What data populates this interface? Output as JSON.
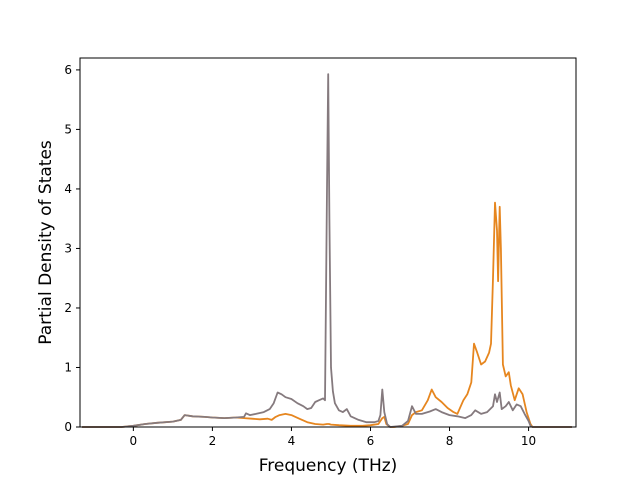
{
  "chart_data": {
    "type": "line",
    "title": "",
    "xlabel": "Frequency (THz)",
    "ylabel": "Partial Density of States",
    "xlim": [
      -1.35,
      11.2
    ],
    "ylim": [
      0,
      6.2
    ],
    "xticks": [
      0,
      2,
      4,
      6,
      8,
      10
    ],
    "yticks": [
      0,
      1,
      2,
      3,
      4,
      5,
      6
    ],
    "grid": false,
    "legend": "none",
    "series": [
      {
        "color": "#e6861f",
        "points": [
          [
            -1.3,
            0
          ],
          [
            -0.3,
            0
          ],
          [
            0,
            0.02
          ],
          [
            0.3,
            0.05
          ],
          [
            0.6,
            0.07
          ],
          [
            1.0,
            0.09
          ],
          [
            1.2,
            0.12
          ],
          [
            1.3,
            0.2
          ],
          [
            1.5,
            0.18
          ],
          [
            1.8,
            0.17
          ],
          [
            2.0,
            0.16
          ],
          [
            2.3,
            0.15
          ],
          [
            2.6,
            0.16
          ],
          [
            2.8,
            0.15
          ],
          [
            3.0,
            0.14
          ],
          [
            3.2,
            0.13
          ],
          [
            3.4,
            0.14
          ],
          [
            3.5,
            0.12
          ],
          [
            3.6,
            0.17
          ],
          [
            3.7,
            0.2
          ],
          [
            3.85,
            0.22
          ],
          [
            4.0,
            0.2
          ],
          [
            4.2,
            0.14
          ],
          [
            4.4,
            0.08
          ],
          [
            4.6,
            0.05
          ],
          [
            4.8,
            0.04
          ],
          [
            4.9,
            0.05
          ],
          [
            4.95,
            0.05
          ],
          [
            5.0,
            0.04
          ],
          [
            5.2,
            0.03
          ],
          [
            5.5,
            0.02
          ],
          [
            5.8,
            0.02
          ],
          [
            6.0,
            0.03
          ],
          [
            6.2,
            0.05
          ],
          [
            6.3,
            0.15
          ],
          [
            6.35,
            0.17
          ],
          [
            6.4,
            0.05
          ],
          [
            6.5,
            0
          ],
          [
            6.6,
            0
          ],
          [
            6.8,
            0.02
          ],
          [
            6.95,
            0.05
          ],
          [
            7.05,
            0.2
          ],
          [
            7.15,
            0.25
          ],
          [
            7.3,
            0.28
          ],
          [
            7.45,
            0.45
          ],
          [
            7.55,
            0.63
          ],
          [
            7.65,
            0.5
          ],
          [
            7.8,
            0.42
          ],
          [
            7.95,
            0.32
          ],
          [
            8.1,
            0.25
          ],
          [
            8.2,
            0.22
          ],
          [
            8.35,
            0.45
          ],
          [
            8.45,
            0.55
          ],
          [
            8.55,
            0.75
          ],
          [
            8.62,
            1.4
          ],
          [
            8.7,
            1.25
          ],
          [
            8.8,
            1.05
          ],
          [
            8.9,
            1.1
          ],
          [
            9.0,
            1.25
          ],
          [
            9.05,
            1.4
          ],
          [
            9.1,
            2.5
          ],
          [
            9.15,
            3.77
          ],
          [
            9.2,
            3.3
          ],
          [
            9.23,
            2.45
          ],
          [
            9.27,
            3.7
          ],
          [
            9.3,
            3.0
          ],
          [
            9.35,
            1.05
          ],
          [
            9.42,
            0.85
          ],
          [
            9.5,
            0.92
          ],
          [
            9.55,
            0.7
          ],
          [
            9.65,
            0.45
          ],
          [
            9.75,
            0.65
          ],
          [
            9.85,
            0.55
          ],
          [
            9.95,
            0.25
          ],
          [
            10.05,
            0.05
          ],
          [
            10.1,
            0
          ],
          [
            11.1,
            0
          ]
        ]
      },
      {
        "color": "#857a7e",
        "points": [
          [
            -1.3,
            0
          ],
          [
            -0.3,
            0
          ],
          [
            0,
            0.02
          ],
          [
            0.3,
            0.05
          ],
          [
            0.6,
            0.07
          ],
          [
            1.0,
            0.09
          ],
          [
            1.2,
            0.12
          ],
          [
            1.3,
            0.2
          ],
          [
            1.5,
            0.18
          ],
          [
            1.8,
            0.17
          ],
          [
            2.0,
            0.16
          ],
          [
            2.3,
            0.15
          ],
          [
            2.6,
            0.16
          ],
          [
            2.8,
            0.17
          ],
          [
            2.85,
            0.23
          ],
          [
            2.95,
            0.2
          ],
          [
            3.1,
            0.22
          ],
          [
            3.3,
            0.25
          ],
          [
            3.45,
            0.3
          ],
          [
            3.55,
            0.4
          ],
          [
            3.65,
            0.58
          ],
          [
            3.75,
            0.55
          ],
          [
            3.85,
            0.5
          ],
          [
            4.0,
            0.47
          ],
          [
            4.15,
            0.4
          ],
          [
            4.3,
            0.35
          ],
          [
            4.4,
            0.3
          ],
          [
            4.5,
            0.32
          ],
          [
            4.6,
            0.42
          ],
          [
            4.7,
            0.45
          ],
          [
            4.8,
            0.48
          ],
          [
            4.85,
            0.45
          ],
          [
            4.9,
            4.0
          ],
          [
            4.93,
            5.93
          ],
          [
            4.96,
            3.5
          ],
          [
            5.0,
            1.0
          ],
          [
            5.05,
            0.6
          ],
          [
            5.1,
            0.4
          ],
          [
            5.2,
            0.28
          ],
          [
            5.3,
            0.25
          ],
          [
            5.4,
            0.3
          ],
          [
            5.5,
            0.18
          ],
          [
            5.7,
            0.12
          ],
          [
            5.9,
            0.08
          ],
          [
            6.1,
            0.08
          ],
          [
            6.2,
            0.1
          ],
          [
            6.25,
            0.2
          ],
          [
            6.3,
            0.63
          ],
          [
            6.35,
            0.25
          ],
          [
            6.42,
            0.05
          ],
          [
            6.5,
            0
          ],
          [
            6.8,
            0.02
          ],
          [
            6.95,
            0.1
          ],
          [
            7.05,
            0.35
          ],
          [
            7.15,
            0.22
          ],
          [
            7.3,
            0.22
          ],
          [
            7.5,
            0.26
          ],
          [
            7.65,
            0.3
          ],
          [
            7.8,
            0.25
          ],
          [
            8.0,
            0.2
          ],
          [
            8.2,
            0.18
          ],
          [
            8.4,
            0.15
          ],
          [
            8.55,
            0.2
          ],
          [
            8.65,
            0.28
          ],
          [
            8.8,
            0.22
          ],
          [
            8.95,
            0.25
          ],
          [
            9.1,
            0.35
          ],
          [
            9.15,
            0.55
          ],
          [
            9.2,
            0.42
          ],
          [
            9.27,
            0.58
          ],
          [
            9.32,
            0.3
          ],
          [
            9.42,
            0.35
          ],
          [
            9.5,
            0.42
          ],
          [
            9.6,
            0.28
          ],
          [
            9.7,
            0.38
          ],
          [
            9.8,
            0.35
          ],
          [
            9.9,
            0.22
          ],
          [
            10.0,
            0.1
          ],
          [
            10.05,
            0.02
          ],
          [
            10.1,
            0
          ],
          [
            11.1,
            0
          ]
        ]
      }
    ]
  }
}
